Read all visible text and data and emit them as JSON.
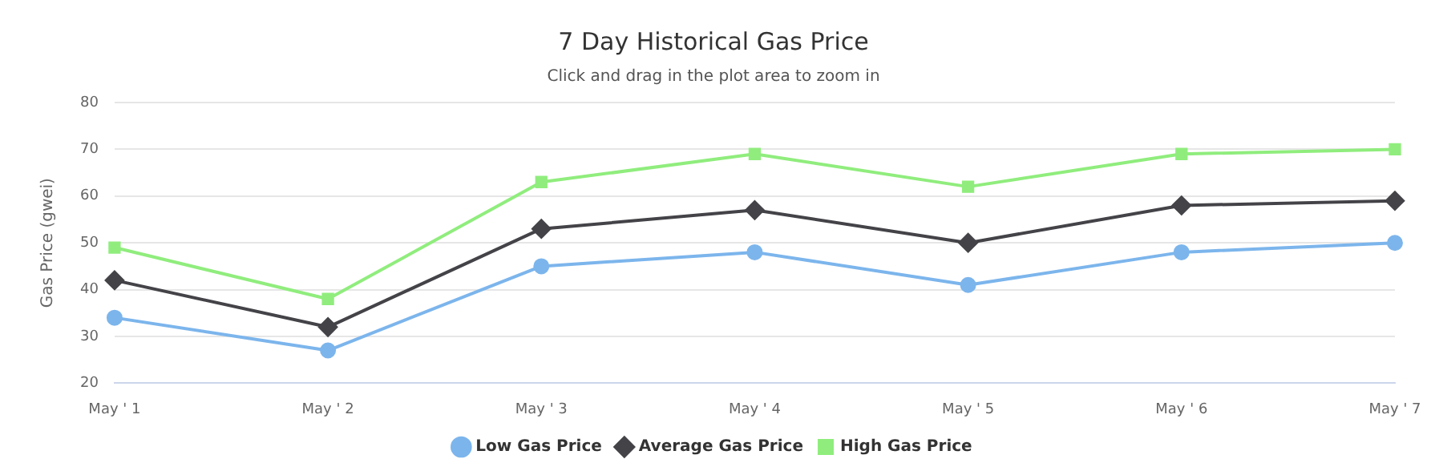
{
  "chart_data": {
    "type": "line",
    "title": "7 Day Historical Gas Price",
    "subtitle": "Click and drag in the plot area to zoom in",
    "ylabel": "Gas Price (gwei)",
    "categories": [
      "May ' 1",
      "May ' 2",
      "May ' 3",
      "May ' 4",
      "May ' 5",
      "May ' 6",
      "May ' 7"
    ],
    "series": [
      {
        "name": "Low Gas Price",
        "color": "#7cb5ec",
        "marker": "circle",
        "values": [
          34,
          27,
          45,
          48,
          41,
          48,
          50
        ]
      },
      {
        "name": "Average Gas Price",
        "color": "#434348",
        "marker": "diamond",
        "values": [
          42,
          32,
          53,
          57,
          50,
          58,
          59
        ]
      },
      {
        "name": "High Gas Price",
        "color": "#90ed7d",
        "marker": "square",
        "values": [
          49,
          38,
          63,
          69,
          62,
          69,
          70
        ]
      }
    ],
    "ylim": [
      20,
      80
    ],
    "yticks": [
      20,
      30,
      40,
      50,
      60,
      70,
      80
    ],
    "grid": "y",
    "legend": "bottom"
  }
}
